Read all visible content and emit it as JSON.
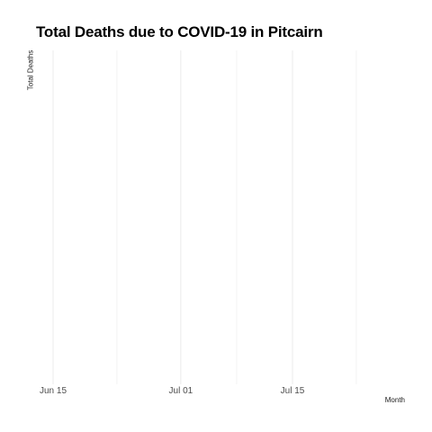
{
  "chart_data": {
    "type": "line",
    "title": "Total Deaths due to COVID-19 in Pitcairn",
    "xlabel": "Month",
    "ylabel": "Total Deaths",
    "x_ticks": [
      {
        "label": "Jun 15",
        "date": "2020-06-15"
      },
      {
        "label": "Jul 01",
        "date": "2020-07-01"
      },
      {
        "label": "Jul 15",
        "date": "2020-07-15"
      }
    ],
    "x_minor_gridlines": [
      "2020-06-23",
      "2020-07-08",
      "2020-07-23"
    ],
    "xlim": [
      "2020-06-15",
      "2020-07-23"
    ],
    "series": [],
    "grid": true,
    "colors": {
      "grid": "#ebebeb",
      "tick_text": "#4d4d4d",
      "title": "#000000"
    }
  }
}
